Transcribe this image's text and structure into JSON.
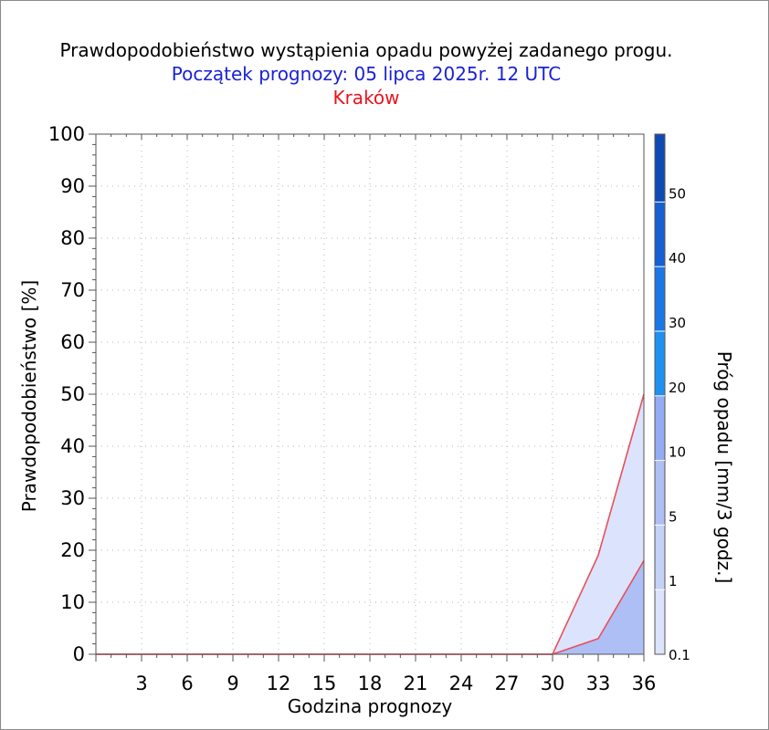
{
  "header": {
    "title": "Prawdopodobieństwo wystąpienia opadu powyżej zadanego progu.",
    "subtitle": "Początek prognozy: 05 lipca 2025r. 12 UTC",
    "location": "Kraków"
  },
  "chart_data": {
    "type": "area",
    "title": "Prawdopodobieństwo wystąpienia opadu powyżej zadanego progu.",
    "xlabel": "Godzina prognozy",
    "ylabel": "Prawdopodobieństwo [%]",
    "xlim": [
      0,
      36
    ],
    "ylim": [
      0,
      100
    ],
    "x_ticks": [
      3,
      6,
      9,
      12,
      15,
      18,
      21,
      24,
      27,
      30,
      33,
      36
    ],
    "y_ticks": [
      0,
      10,
      20,
      30,
      40,
      50,
      60,
      70,
      80,
      90,
      100
    ],
    "grid": true,
    "x": [
      0,
      3,
      6,
      9,
      12,
      15,
      18,
      21,
      24,
      27,
      30,
      33,
      36
    ],
    "series": [
      {
        "name": "0.1",
        "color": "#dce3fc",
        "values": [
          0,
          0,
          0,
          0,
          0,
          0,
          0,
          0,
          0,
          0,
          0,
          19,
          50
        ]
      },
      {
        "name": "1",
        "color": "#adbff5",
        "values": [
          0,
          0,
          0,
          0,
          0,
          0,
          0,
          0,
          0,
          0,
          0,
          3,
          18
        ]
      }
    ],
    "line_color": "#e8505a",
    "colorbar": {
      "label": "Próg opadu [mm/3 godz.]",
      "tick_labels": [
        "0.1",
        "1",
        "5",
        "10",
        "20",
        "30",
        "40",
        "50"
      ],
      "bands": [
        {
          "from": "0.1",
          "to": "1",
          "color": "#dce3fc"
        },
        {
          "from": "1",
          "to": "5",
          "color": "#c4d2f8"
        },
        {
          "from": "5",
          "to": "10",
          "color": "#adbff5"
        },
        {
          "from": "10",
          "to": "20",
          "color": "#94acf4"
        },
        {
          "from": "20",
          "to": "30",
          "color": "#1e90f0"
        },
        {
          "from": "30",
          "to": "40",
          "color": "#1a78e6"
        },
        {
          "from": "40",
          "to": "50",
          "color": "#1560d2"
        },
        {
          "from": "50",
          "to": "",
          "color": "#0f4ab4"
        }
      ]
    }
  }
}
